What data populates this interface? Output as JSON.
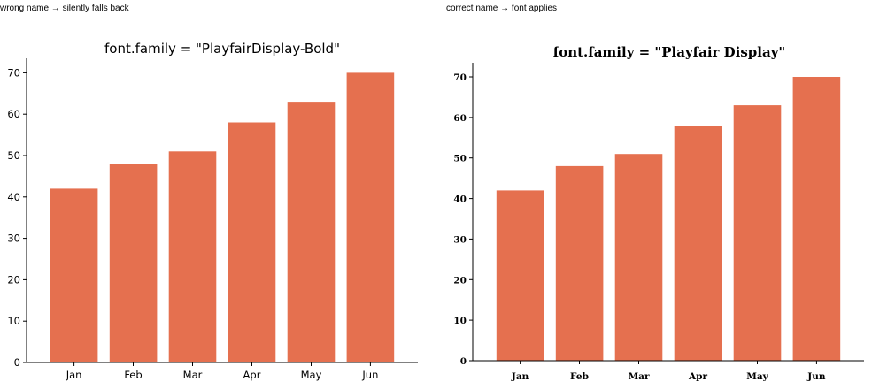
{
  "captions": {
    "left": "wrong name → silently falls back",
    "right": "correct name → font applies"
  },
  "colors": {
    "bar": "#e5704f",
    "axis": "#000000",
    "text": "#000000"
  },
  "chart_data": [
    {
      "type": "bar",
      "title": "font.family = \"PlayfairDisplay-Bold\"",
      "categories": [
        "Jan",
        "Feb",
        "Mar",
        "Apr",
        "May",
        "Jun"
      ],
      "values": [
        42,
        48,
        51,
        58,
        63,
        70
      ],
      "yticks": [
        0,
        10,
        20,
        30,
        40,
        50,
        60,
        70
      ],
      "ylim": [
        0,
        73.5
      ],
      "xlabel": "",
      "ylabel": "",
      "grid": false,
      "font_style": "sans"
    },
    {
      "type": "bar",
      "title": "font.family = \"Playfair Display\"",
      "categories": [
        "Jan",
        "Feb",
        "Mar",
        "Apr",
        "May",
        "Jun"
      ],
      "values": [
        42,
        48,
        51,
        58,
        63,
        70
      ],
      "yticks": [
        0,
        10,
        20,
        30,
        40,
        50,
        60,
        70
      ],
      "ylim": [
        0,
        73.5
      ],
      "xlabel": "",
      "ylabel": "",
      "grid": false,
      "font_style": "serif"
    }
  ]
}
